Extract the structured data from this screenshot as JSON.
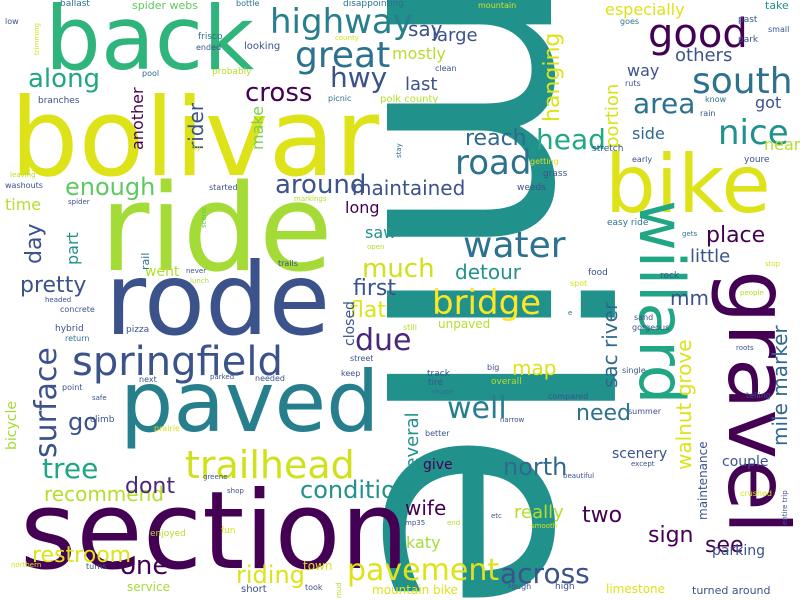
{
  "words": [
    {
      "text": "mile",
      "color": "#21918c"
    },
    {
      "text": "bolivar",
      "color": "#dde318"
    },
    {
      "text": "ride",
      "color": "#a5db36"
    },
    {
      "text": "paved",
      "color": "#277f8e"
    },
    {
      "text": "section",
      "color": "#440154"
    },
    {
      "text": "rode",
      "color": "#3b528b"
    },
    {
      "text": "back",
      "color": "#2fb47c"
    },
    {
      "text": "gravel",
      "color": "#440154"
    },
    {
      "text": "bike",
      "color": "#dde318"
    },
    {
      "text": "willard",
      "color": "#21a685"
    },
    {
      "text": "springfield",
      "color": "#3b528b"
    },
    {
      "text": "trailhead",
      "color": "#d0e11c"
    },
    {
      "text": "highway",
      "color": "#277f8e"
    },
    {
      "text": "south",
      "color": "#2c728e"
    },
    {
      "text": "great",
      "color": "#2c728e"
    },
    {
      "text": "good",
      "color": "#440154"
    },
    {
      "text": "road",
      "color": "#2c728e"
    },
    {
      "text": "water",
      "color": "#2c728e"
    },
    {
      "text": "bridge",
      "color": "#fde725"
    },
    {
      "text": "pavement",
      "color": "#dde318"
    },
    {
      "text": "across",
      "color": "#3b528b"
    },
    {
      "text": "surface",
      "color": "#3b528b"
    },
    {
      "text": "nice",
      "color": "#21918c"
    },
    {
      "text": "well",
      "color": "#277f8e"
    },
    {
      "text": "much",
      "color": "#d0e11c"
    },
    {
      "text": "due",
      "color": "#482878"
    },
    {
      "text": "along",
      "color": "#21a685"
    },
    {
      "text": "hwy",
      "color": "#3b528b"
    },
    {
      "text": "cross",
      "color": "#440154"
    },
    {
      "text": "head",
      "color": "#22a884"
    },
    {
      "text": "area",
      "color": "#2c728e"
    },
    {
      "text": "reach",
      "color": "#31688e"
    },
    {
      "text": "around",
      "color": "#3b528b"
    },
    {
      "text": "maintained",
      "color": "#3b528b"
    },
    {
      "text": "enough",
      "color": "#5ec962"
    },
    {
      "text": "tree",
      "color": "#21a685"
    },
    {
      "text": "north",
      "color": "#31688e"
    },
    {
      "text": "condition",
      "color": "#21918c"
    },
    {
      "text": "riding",
      "color": "#dde318"
    },
    {
      "text": "one",
      "color": "#440154"
    },
    {
      "text": "restroom",
      "color": "#dde318"
    },
    {
      "text": "recommend",
      "color": "#b5de2b"
    },
    {
      "text": "dont",
      "color": "#482878"
    },
    {
      "text": "go",
      "color": "#3b528b"
    },
    {
      "text": "pretty",
      "color": "#3b528b"
    },
    {
      "text": "day",
      "color": "#3b528b"
    },
    {
      "text": "first",
      "color": "#3b528b"
    },
    {
      "text": "flat",
      "color": "#dde318"
    },
    {
      "text": "detour",
      "color": "#21918c"
    },
    {
      "text": "place",
      "color": "#440154"
    },
    {
      "text": "little",
      "color": "#3b528b"
    },
    {
      "text": "mm",
      "color": "#3b528b"
    },
    {
      "text": "sac river",
      "color": "#31688e"
    },
    {
      "text": "walnut grove",
      "color": "#dde318"
    },
    {
      "text": "mile marker",
      "color": "#31688e"
    },
    {
      "text": "sign",
      "color": "#440154"
    },
    {
      "text": "see",
      "color": "#440154"
    },
    {
      "text": "two",
      "color": "#440154"
    },
    {
      "text": "need",
      "color": "#2c728e"
    },
    {
      "text": "map",
      "color": "#dde318"
    },
    {
      "text": "wife",
      "color": "#440154"
    },
    {
      "text": "several",
      "color": "#21918c"
    },
    {
      "text": "really",
      "color": "#b5de2b"
    },
    {
      "text": "katy",
      "color": "#a5db36"
    },
    {
      "text": "say",
      "color": "#3b528b"
    },
    {
      "text": "large",
      "color": "#3b528b"
    },
    {
      "text": "mostly",
      "color": "#b5de2b"
    },
    {
      "text": "last",
      "color": "#3b528b"
    },
    {
      "text": "portion",
      "color": "#d8e219"
    },
    {
      "text": "hanging",
      "color": "#dde318"
    },
    {
      "text": "especially",
      "color": "#dde318"
    },
    {
      "text": "others",
      "color": "#3b528b"
    },
    {
      "text": "way",
      "color": "#3b528b"
    },
    {
      "text": "got",
      "color": "#3b528b"
    },
    {
      "text": "near",
      "color": "#b5de2b"
    },
    {
      "text": "side",
      "color": "#31688e"
    },
    {
      "text": "rider",
      "color": "#3b528b"
    },
    {
      "text": "make",
      "color": "#7ad151"
    },
    {
      "text": "another",
      "color": "#440154"
    },
    {
      "text": "part",
      "color": "#21918c"
    },
    {
      "text": "time",
      "color": "#b5de2b"
    },
    {
      "text": "long",
      "color": "#440154"
    },
    {
      "text": "saw",
      "color": "#21918c"
    },
    {
      "text": "closed",
      "color": "#3b528b"
    },
    {
      "text": "went",
      "color": "#b5de2b"
    },
    {
      "text": "bicycle",
      "color": "#a5db36"
    },
    {
      "text": "couple",
      "color": "#3b528b"
    },
    {
      "text": "scenery",
      "color": "#3b528b"
    },
    {
      "text": "give",
      "color": "#440154"
    },
    {
      "text": "maintenance",
      "color": "#3b528b"
    },
    {
      "text": "parking",
      "color": "#3b528b"
    },
    {
      "text": "mountain bike",
      "color": "#dde318"
    },
    {
      "text": "limestone",
      "color": "#dde318"
    },
    {
      "text": "service",
      "color": "#a5db36"
    },
    {
      "text": "town",
      "color": "#dde318"
    },
    {
      "text": "unpaved",
      "color": "#b5de2b"
    },
    {
      "text": "ballast",
      "color": "#2c728e"
    },
    {
      "text": "spider webs",
      "color": "#5ec962"
    },
    {
      "text": "bottle",
      "color": "#2c728e"
    },
    {
      "text": "disappointing",
      "color": "#2c728e"
    },
    {
      "text": "mountain",
      "color": "#d8e219"
    },
    {
      "text": "take",
      "color": "#21918c"
    },
    {
      "text": "low",
      "color": "#3b528b"
    },
    {
      "text": "trimming",
      "color": "#d8e219"
    },
    {
      "text": "frisco",
      "color": "#2c728e"
    },
    {
      "text": "ended",
      "color": "#3b528b"
    },
    {
      "text": "county",
      "color": "#d8e219"
    },
    {
      "text": "looking",
      "color": "#3b528b"
    },
    {
      "text": "goes",
      "color": "#2c728e"
    },
    {
      "text": "past",
      "color": "#3b528b"
    },
    {
      "text": "small",
      "color": "#3b528b"
    },
    {
      "text": "park",
      "color": "#3b528b"
    },
    {
      "text": "pool",
      "color": "#31688e"
    },
    {
      "text": "probably",
      "color": "#b5de2b"
    },
    {
      "text": "clean",
      "color": "#3b528b"
    },
    {
      "text": "picnic",
      "color": "#2c728e"
    },
    {
      "text": "polk county",
      "color": "#b5de2b"
    },
    {
      "text": "ruts",
      "color": "#3b528b"
    },
    {
      "text": "know",
      "color": "#2c728e"
    },
    {
      "text": "rain",
      "color": "#3b528b"
    },
    {
      "text": "branches",
      "color": "#3b528b"
    },
    {
      "text": "stay",
      "color": "#2c728e"
    },
    {
      "text": "city",
      "color": "#d8e219"
    },
    {
      "text": "getting",
      "color": "#d8e219"
    },
    {
      "text": "grass",
      "color": "#3b528b"
    },
    {
      "text": "stretch",
      "color": "#3b528b"
    },
    {
      "text": "early",
      "color": "#3b528b"
    },
    {
      "text": "youre",
      "color": "#3b528b"
    },
    {
      "text": "leaving",
      "color": "#b5de2b"
    },
    {
      "text": "washouts",
      "color": "#3b528b"
    },
    {
      "text": "started",
      "color": "#3b528b"
    },
    {
      "text": "weeds",
      "color": "#3b528b"
    },
    {
      "text": "spider",
      "color": "#3b528b"
    },
    {
      "text": "markings",
      "color": "#b5de2b"
    },
    {
      "text": "scenic",
      "color": "#5ec962"
    },
    {
      "text": "easy ride",
      "color": "#2c728e"
    },
    {
      "text": "gets",
      "color": "#2c728e"
    },
    {
      "text": "rail",
      "color": "#2c728e"
    },
    {
      "text": "trails",
      "color": "#3b528b"
    },
    {
      "text": "open",
      "color": "#b5de2b"
    },
    {
      "text": "food",
      "color": "#3b528b"
    },
    {
      "text": "spot",
      "color": "#d8e219"
    },
    {
      "text": "rock",
      "color": "#3b528b"
    },
    {
      "text": "stop",
      "color": "#d8e219"
    },
    {
      "text": "headed",
      "color": "#3b528b"
    },
    {
      "text": "never",
      "color": "#3b528b"
    },
    {
      "text": "lunch",
      "color": "#b5de2b"
    },
    {
      "text": "people",
      "color": "#b5de2b"
    },
    {
      "text": "concrete",
      "color": "#3b528b"
    },
    {
      "text": "hybrid",
      "color": "#3b528b"
    },
    {
      "text": "pizza",
      "color": "#3b528b"
    },
    {
      "text": "return",
      "color": "#2c728e"
    },
    {
      "text": "e",
      "color": "#2c728e"
    },
    {
      "text": "sand",
      "color": "#3b528b"
    },
    {
      "text": "gorgeous",
      "color": "#3b528b"
    },
    {
      "text": "still",
      "color": "#b5de2b"
    },
    {
      "text": "street",
      "color": "#3b528b"
    },
    {
      "text": "roots",
      "color": "#3b528b"
    },
    {
      "text": "keep",
      "color": "#3b528b"
    },
    {
      "text": "big",
      "color": "#3b528b"
    },
    {
      "text": "track",
      "color": "#3b528b"
    },
    {
      "text": "tire",
      "color": "#3b528b"
    },
    {
      "text": "single",
      "color": "#3b528b"
    },
    {
      "text": "point",
      "color": "#3b528b"
    },
    {
      "text": "next",
      "color": "#3b528b"
    },
    {
      "text": "parked",
      "color": "#3b528b"
    },
    {
      "text": "needed",
      "color": "#3b528b"
    },
    {
      "text": "shape",
      "color": "#2c728e"
    },
    {
      "text": "overall",
      "color": "#b5de2b"
    },
    {
      "text": "compared",
      "color": "#3b528b"
    },
    {
      "text": "safe",
      "color": "#3b528b"
    },
    {
      "text": "summer",
      "color": "#3b528b"
    },
    {
      "text": "telling",
      "color": "#3b528b"
    },
    {
      "text": "narrow",
      "color": "#3b528b"
    },
    {
      "text": "better",
      "color": "#3b528b"
    },
    {
      "text": "climb",
      "color": "#3b528b"
    },
    {
      "text": "prairie",
      "color": "#d8e219"
    },
    {
      "text": "greene",
      "color": "#3b528b"
    },
    {
      "text": "shop",
      "color": "#3b528b"
    },
    {
      "text": "fun",
      "color": "#d8e219"
    },
    {
      "text": "enjoyed",
      "color": "#b5de2b"
    },
    {
      "text": "beautiful",
      "color": "#3b528b"
    },
    {
      "text": "except",
      "color": "#3b528b"
    },
    {
      "text": "crushed",
      "color": "#d8e219"
    },
    {
      "text": "entire trip",
      "color": "#3b528b"
    },
    {
      "text": "mp35",
      "color": "#3b528b"
    },
    {
      "text": "end",
      "color": "#b5de2b"
    },
    {
      "text": "etc",
      "color": "#3b528b"
    },
    {
      "text": "smooth",
      "color": "#d8e219"
    },
    {
      "text": "northern",
      "color": "#d8e219"
    },
    {
      "text": "turns",
      "color": "#3b528b"
    },
    {
      "text": "short",
      "color": "#3b528b"
    },
    {
      "text": "took",
      "color": "#3b528b"
    },
    {
      "text": "mud",
      "color": "#b5de2b"
    },
    {
      "text": "rough",
      "color": "#3b528b"
    },
    {
      "text": "high",
      "color": "#3b528b"
    },
    {
      "text": "turned around",
      "color": "#3b528b"
    }
  ]
}
